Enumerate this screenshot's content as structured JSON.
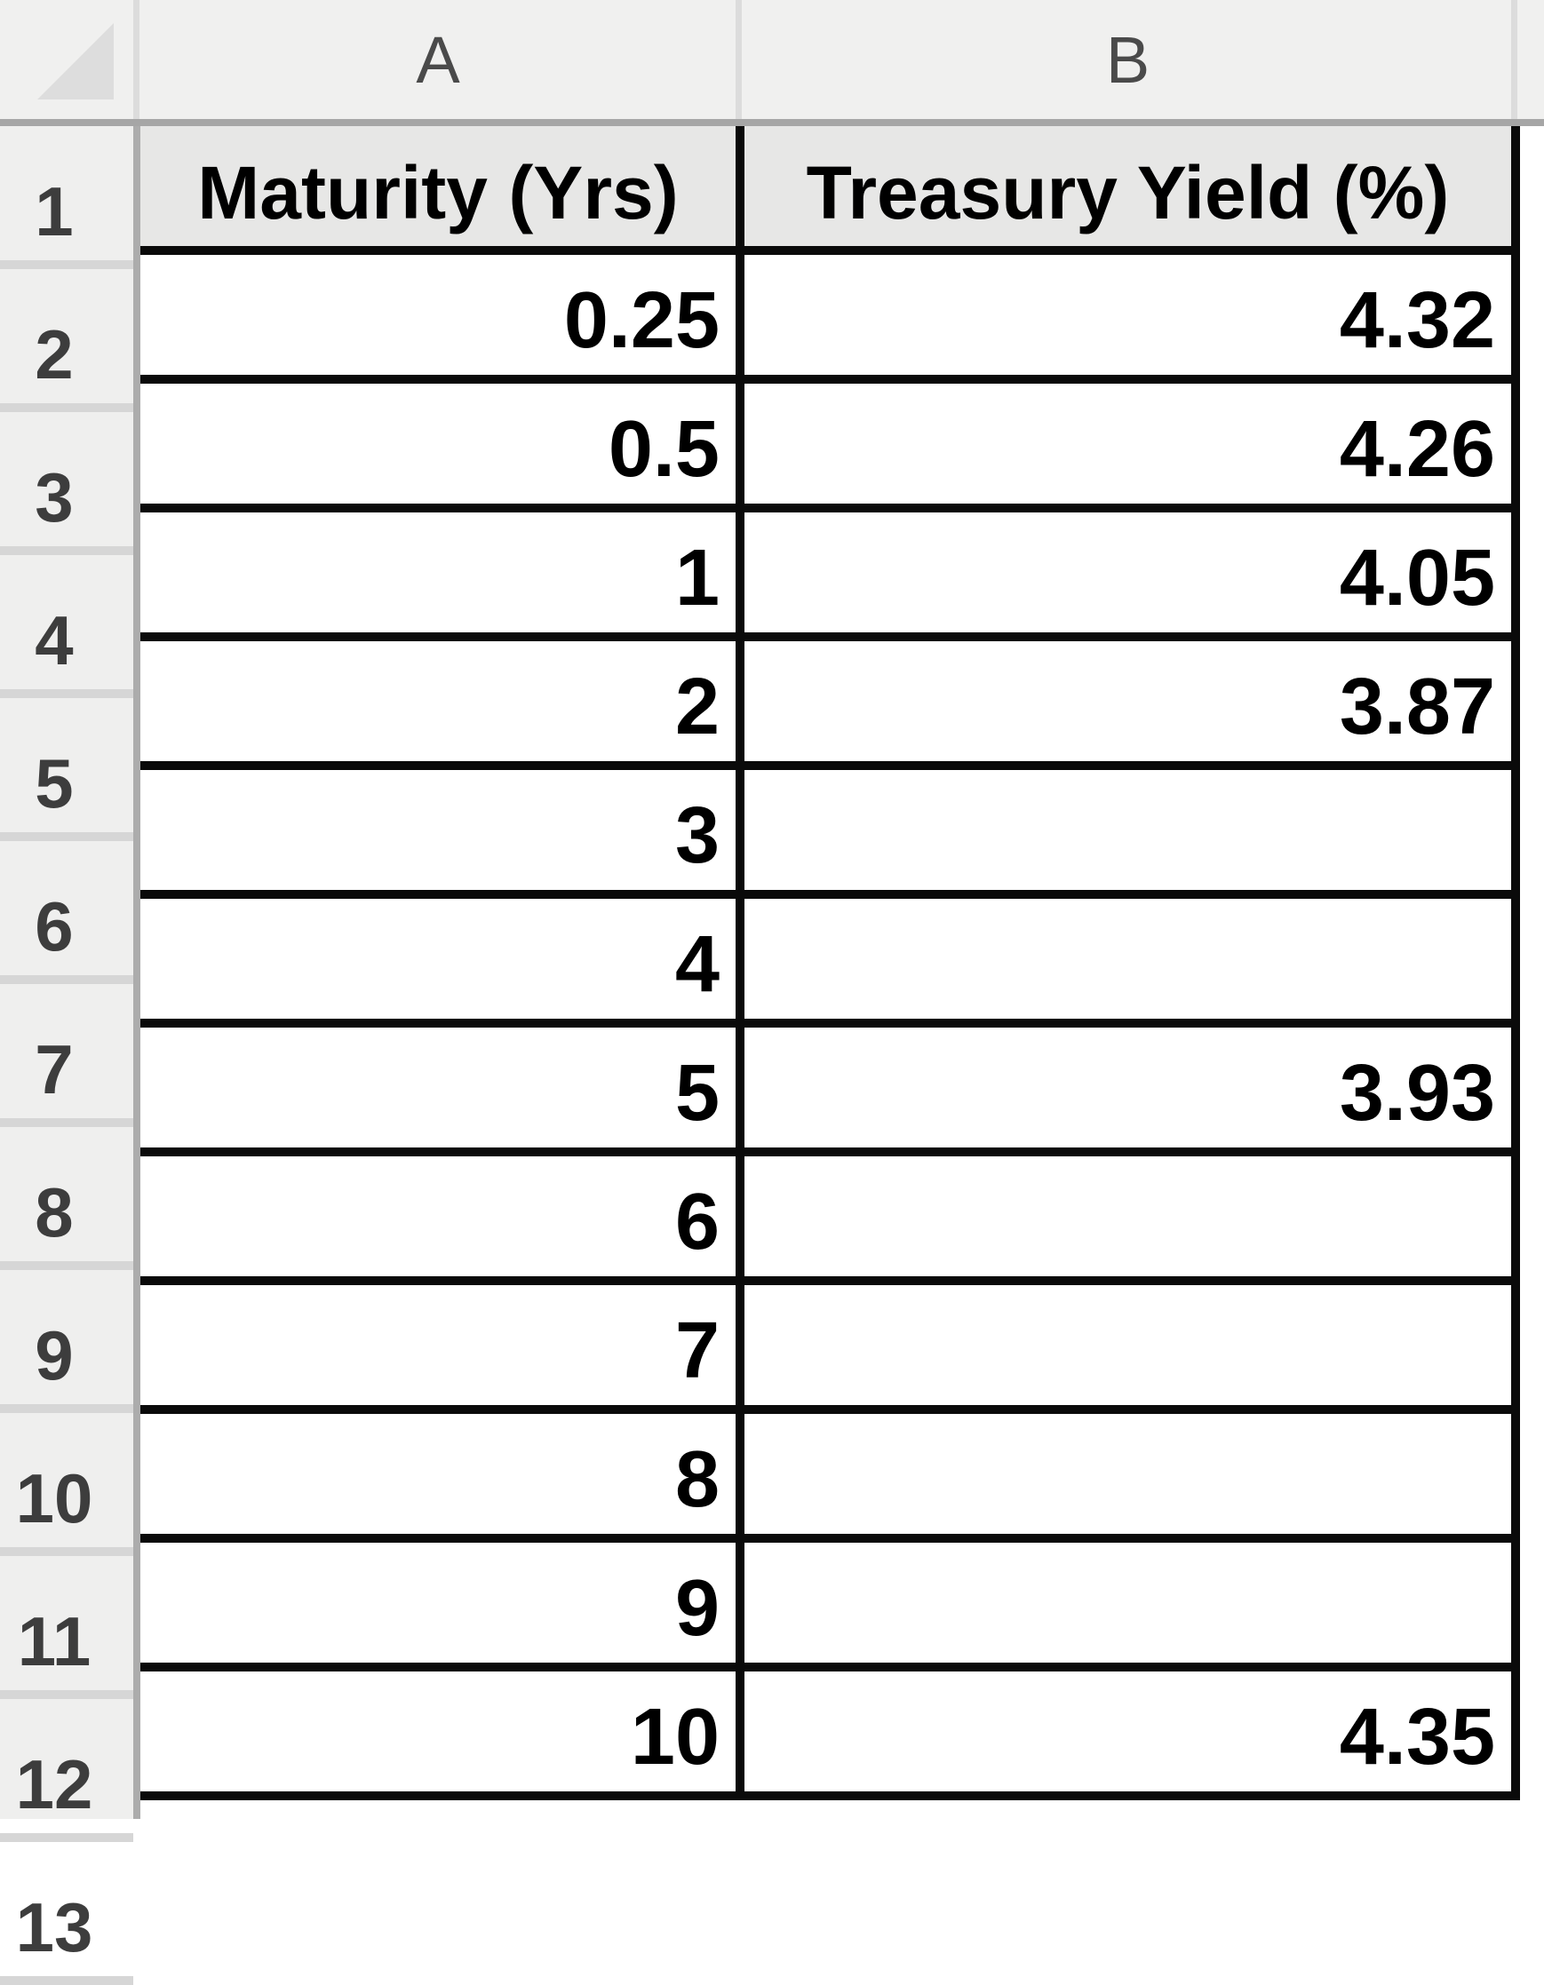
{
  "colors": {
    "band-bg": "#F0F0EF",
    "band-sep": "#A6A6A6",
    "band-vline": "#DCDCDC",
    "gutter-bg": "#EFEFEE",
    "gutter-divider": "#D6D6D6",
    "gutter-vline": "#ACACAC",
    "header-cell-bg": "#E7E7E6",
    "cell-bg": "#FFFFFF",
    "border-black": "#0A0A0A",
    "triangle": "#DDDDDD",
    "row-number-color": "#3D3D3D",
    "column-letter-color": "#4A4A4A",
    "text-color": "#000000"
  },
  "icons": {
    "select_all_triangle": "lower-right gray triangle"
  },
  "sheet": {
    "column_headers": [
      "A",
      "B"
    ],
    "row_numbers": [
      "1",
      "2",
      "3",
      "4",
      "5",
      "6",
      "7",
      "8",
      "9",
      "10",
      "11",
      "12",
      "13"
    ],
    "table": {
      "headers": [
        "Maturity (Yrs)",
        "Treasury Yield (%)"
      ],
      "rows": [
        {
          "maturity": "0.25",
          "yield": "4.32"
        },
        {
          "maturity": "0.5",
          "yield": "4.26"
        },
        {
          "maturity": "1",
          "yield": "4.05"
        },
        {
          "maturity": "2",
          "yield": "3.87"
        },
        {
          "maturity": "3",
          "yield": ""
        },
        {
          "maturity": "4",
          "yield": ""
        },
        {
          "maturity": "5",
          "yield": "3.93"
        },
        {
          "maturity": "6",
          "yield": ""
        },
        {
          "maturity": "7",
          "yield": ""
        },
        {
          "maturity": "8",
          "yield": ""
        },
        {
          "maturity": "9",
          "yield": ""
        },
        {
          "maturity": "10",
          "yield": "4.35"
        }
      ]
    }
  }
}
